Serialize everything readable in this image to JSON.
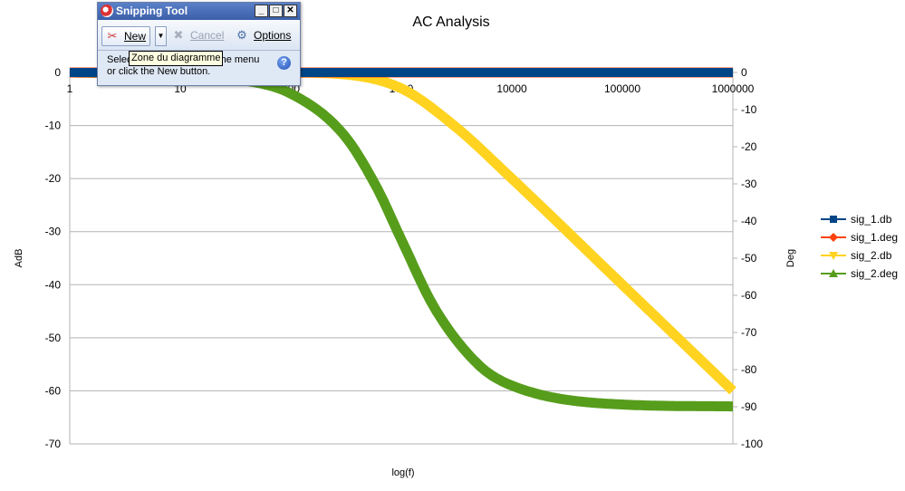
{
  "chart_data": {
    "type": "line",
    "title": "AC Analysis",
    "xlabel": "log(f)",
    "ylabel_left": "AdB",
    "ylabel_right": "Deg",
    "x_scale": "log",
    "xlim": [
      1,
      1000000
    ],
    "x_ticks": [
      "1",
      "10",
      "100",
      "1000",
      "10000",
      "100000",
      "1000000"
    ],
    "ylim_left": [
      -70,
      0
    ],
    "y_ticks_left": [
      "0",
      "-10",
      "-20",
      "-30",
      "-40",
      "-50",
      "-60",
      "-70"
    ],
    "ylim_right": [
      -100,
      0
    ],
    "y_ticks_right": [
      "0",
      "-10",
      "-20",
      "-30",
      "-40",
      "-50",
      "-60",
      "-70",
      "-80",
      "-90",
      "-100"
    ],
    "grid": "horizontal",
    "legend_position": "right",
    "series": [
      {
        "name": "sig_1.db",
        "axis": "left",
        "color": "#004586",
        "marker": "square",
        "x": [
          1,
          10,
          100,
          1000,
          10000,
          100000,
          1000000
        ],
        "y": [
          0,
          0,
          0,
          0,
          0,
          0,
          0
        ]
      },
      {
        "name": "sig_1.deg",
        "axis": "right",
        "color": "#ff420e",
        "marker": "diamond",
        "x": [
          1,
          10,
          100,
          1000,
          10000,
          100000,
          1000000
        ],
        "y": [
          0,
          0,
          0,
          0,
          0,
          0,
          0
        ]
      },
      {
        "name": "sig_2.db",
        "axis": "left",
        "color": "#ffd320",
        "marker": "triangle-down",
        "x": [
          1,
          10,
          100,
          300,
          1000,
          3000,
          10000,
          100000,
          1000000
        ],
        "y": [
          0,
          0,
          -0.04,
          -0.35,
          -3.0,
          -10.0,
          -20.0,
          -40.0,
          -60.0
        ]
      },
      {
        "name": "sig_2.deg",
        "axis": "right",
        "color": "#579d1c",
        "marker": "triangle-up",
        "x": [
          1,
          10,
          30,
          100,
          300,
          600,
          1000,
          2000,
          5000,
          10000,
          100000,
          1000000
        ],
        "y": [
          0,
          -0.6,
          -1.7,
          -5.7,
          -16.7,
          -31,
          -45,
          -63.4,
          -78.7,
          -84.3,
          -89.4,
          -89.9
        ]
      }
    ]
  },
  "snipping_tool": {
    "title": "Snipping Tool",
    "new_label": "New",
    "cancel_label": "Cancel",
    "options_label": "Options",
    "instruction_line1": "Select",
    "instruction_line1_end": "he menu",
    "instruction_line2": "or click the New button.",
    "tooltip": "Zone du diagramme"
  }
}
